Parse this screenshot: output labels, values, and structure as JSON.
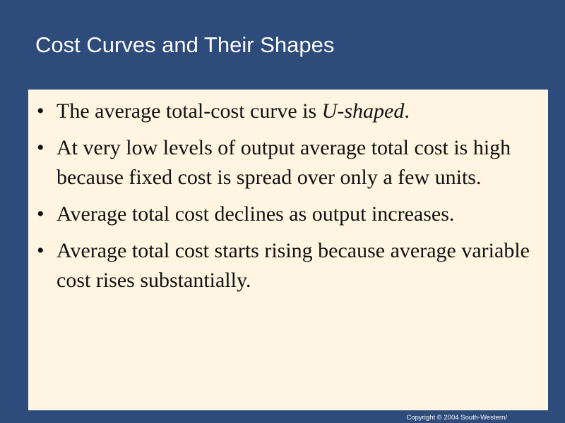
{
  "slide": {
    "title": "Cost Curves and Their Shapes",
    "bullets": [
      {
        "text": "The average total-cost curve is",
        "emphasis": "U-shaped",
        "end": "."
      },
      {
        "text": "At very low levels of output average total cost is high because fixed cost is spread over only a few units."
      },
      {
        "text": "Average total cost declines as output increases."
      },
      {
        "text": "Average total cost starts rising because average variable cost rises substantially."
      }
    ],
    "copyright": "Copyright © 2004 South-Western/"
  }
}
